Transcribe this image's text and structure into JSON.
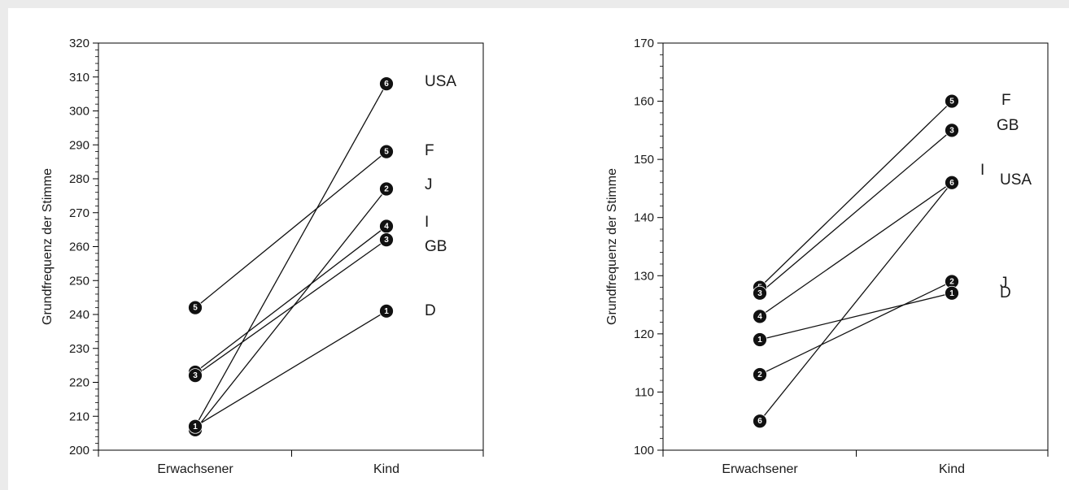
{
  "chart_data": [
    {
      "type": "line",
      "ylabel": "Grundfrequenz der Stimme",
      "xlabel": "",
      "ylim": [
        200,
        320
      ],
      "yticks": [
        200,
        210,
        220,
        230,
        240,
        250,
        260,
        270,
        280,
        290,
        300,
        310,
        320
      ],
      "categories": [
        "Erwachsener",
        "Kind"
      ],
      "series": [
        {
          "name": "USA",
          "marker": "6",
          "values": [
            207,
            308
          ]
        },
        {
          "name": "F",
          "marker": "5",
          "values": [
            242,
            288
          ]
        },
        {
          "name": "J",
          "marker": "2",
          "values": [
            206,
            277
          ]
        },
        {
          "name": "I",
          "marker": "4",
          "values": [
            223,
            266
          ]
        },
        {
          "name": "GB",
          "marker": "3",
          "values": [
            222,
            262
          ]
        },
        {
          "name": "D",
          "marker": "1",
          "values": [
            207,
            241
          ]
        }
      ]
    },
    {
      "type": "line",
      "ylabel": "Grundfrequenz der Stimme",
      "xlabel": "",
      "ylim": [
        100,
        170
      ],
      "yticks": [
        100,
        110,
        120,
        130,
        140,
        150,
        160,
        170
      ],
      "categories": [
        "Erwachsener",
        "Kind"
      ],
      "series": [
        {
          "name": "F",
          "marker": "5",
          "values": [
            128,
            160
          ]
        },
        {
          "name": "GB",
          "marker": "3",
          "values": [
            127,
            155
          ]
        },
        {
          "name": "I",
          "marker": "4",
          "values": [
            123,
            146
          ]
        },
        {
          "name": "USA",
          "marker": "6",
          "values": [
            105,
            146
          ]
        },
        {
          "name": "J",
          "marker": "2",
          "values": [
            113,
            129
          ]
        },
        {
          "name": "D",
          "marker": "1",
          "values": [
            119,
            127
          ]
        }
      ]
    }
  ]
}
